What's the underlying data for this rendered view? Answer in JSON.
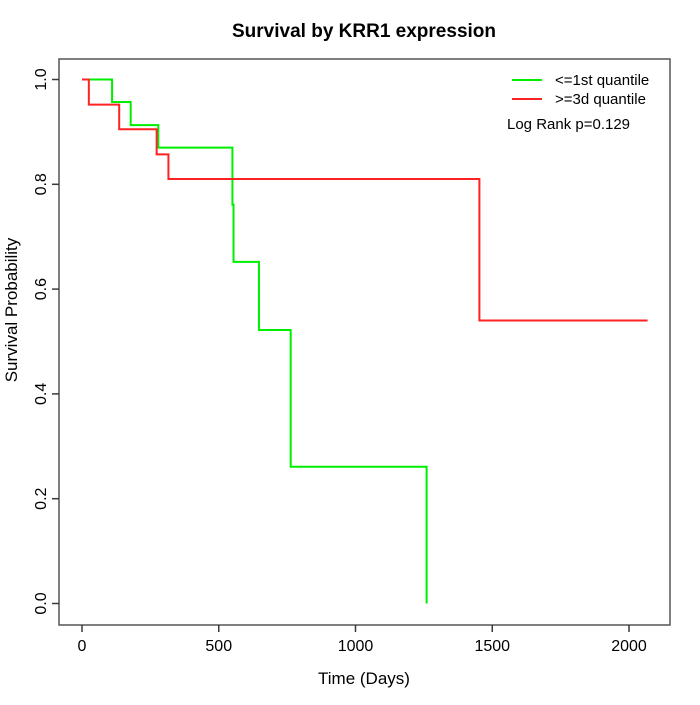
{
  "title": "Survival by KRR1 expression",
  "legend": {
    "items": [
      {
        "label": "<=1st quantile",
        "color": "#00ee00"
      },
      {
        "label": ">=3d quantile",
        "color": "#ff2222"
      }
    ],
    "note": "Log Rank p=0.129"
  },
  "chart_data": {
    "type": "line",
    "subtype": "kaplan-meier-step",
    "title": "Survival by KRR1 expression",
    "xlabel": "Time (Days)",
    "ylabel": "Survival Probability",
    "xlim": [
      0,
      2100
    ],
    "ylim": [
      0.0,
      1.0
    ],
    "grid": false,
    "legend_position": "top-right",
    "annotation": "Log Rank p=0.129",
    "xticks": [
      0,
      500,
      1000,
      1500,
      2000
    ],
    "xtick_labels": [
      "0",
      "500",
      "1000",
      "1500",
      "2000"
    ],
    "yticks": [
      0.0,
      0.2,
      0.4,
      0.6,
      0.8,
      1.0
    ],
    "ytick_labels": [
      "0.0",
      "0.2",
      "0.4",
      "0.6",
      "0.8",
      "1.0"
    ],
    "series": [
      {
        "name": "<=1st quantile",
        "color": "#00ee00",
        "end_time": 1260,
        "steps": [
          [
            0,
            1.0
          ],
          [
            110,
            0.957
          ],
          [
            178,
            0.913
          ],
          [
            279,
            0.87
          ],
          [
            550,
            0.761
          ],
          [
            554,
            0.652
          ],
          [
            647,
            0.522
          ],
          [
            763,
            0.261
          ],
          [
            1260,
            0.0
          ]
        ]
      },
      {
        "name": ">=3d quantile",
        "color": "#ff2222",
        "end_time": 2068,
        "steps": [
          [
            0,
            1.0
          ],
          [
            25,
            0.952
          ],
          [
            136,
            0.905
          ],
          [
            273,
            0.857
          ],
          [
            316,
            0.81
          ],
          [
            1453,
            0.54
          ]
        ]
      }
    ]
  }
}
